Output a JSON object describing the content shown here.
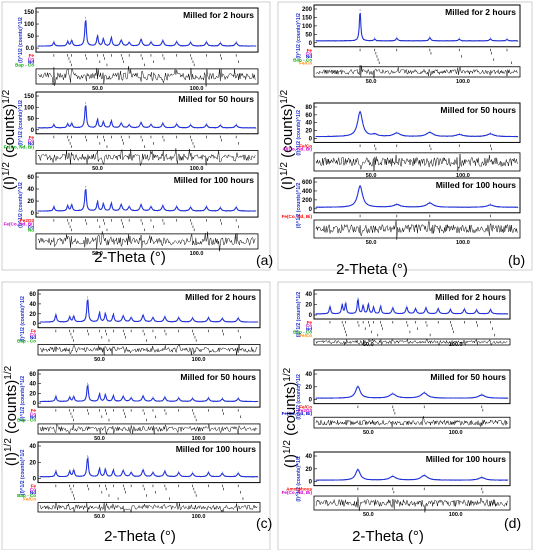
{
  "colors": {
    "calc": "#2233dd",
    "obs": "#000000",
    "residual": "#000000",
    "phase_palette": [
      "#ff0000",
      "#cc00cc",
      "#0000cc",
      "#00aa00",
      "#ff8800"
    ]
  },
  "figure": {
    "ylabel": "(I)^1/2 (counts)^1/2",
    "ylabel_base": "(I)",
    "ylabel_exp1": "1/2",
    "ylabel_mid": " (counts)",
    "ylabel_exp2": "1/2",
    "xlabel": "2-Theta (°)"
  },
  "chart_data": [
    {
      "panel": "(a)",
      "type": "line",
      "xlabel": "2-Theta (°)",
      "ylabel": "(I)^1/2 (counts)^1/2",
      "subplots": [
        {
          "title": "Milled for 2 hours",
          "yticks": [
            "0.0",
            "50",
            "100",
            "150"
          ],
          "xticks": [
            "50.0",
            "100.0"
          ],
          "xlim": [
            20,
            130
          ],
          "ylim": [
            0,
            180
          ],
          "phases": [
            "Fe",
            "Co",
            "Nd",
            "Bap - Co"
          ],
          "peaks": [
            [
              28,
              20
            ],
            [
              35,
              24
            ],
            [
              37,
              30
            ],
            [
              44,
              150
            ],
            [
              50,
              55
            ],
            [
              53,
              38
            ],
            [
              57,
              45
            ],
            [
              62,
              30
            ],
            [
              66,
              18
            ],
            [
              72,
              35
            ],
            [
              77,
              20
            ],
            [
              83,
              28
            ],
            [
              90,
              22
            ],
            [
              97,
              18
            ],
            [
              105,
              20
            ],
            [
              112,
              15
            ],
            [
              120,
              18
            ]
          ]
        },
        {
          "title": "Milled for 50 hours",
          "yticks": [
            "0",
            "50",
            "100",
            "150"
          ],
          "xticks": [
            "50.0",
            "100.0"
          ],
          "xlim": [
            20,
            130
          ],
          "ylim": [
            0,
            180
          ],
          "phases": [
            "Fe",
            "Co",
            "Nd",
            "Fe(Co, Nd, Bi)"
          ],
          "peaks": [
            [
              28,
              18
            ],
            [
              35,
              22
            ],
            [
              37,
              26
            ],
            [
              44,
              140
            ],
            [
              50,
              48
            ],
            [
              53,
              34
            ],
            [
              57,
              40
            ],
            [
              62,
              26
            ],
            [
              66,
              16
            ],
            [
              72,
              30
            ],
            [
              77,
              18
            ],
            [
              83,
              25
            ],
            [
              90,
              20
            ],
            [
              97,
              16
            ],
            [
              105,
              18
            ],
            [
              112,
              14
            ],
            [
              120,
              16
            ]
          ]
        },
        {
          "title": "Milled for 100 hours",
          "yticks": [
            "0",
            "20",
            "40",
            "60"
          ],
          "xticks": [
            "50.0",
            "100.0"
          ],
          "xlim": [
            20,
            130
          ],
          "ylim": [
            0,
            65
          ],
          "phases": [
            "Fe2O3",
            "Fe(Co, Nd, Bi)",
            "Co",
            "Nd"
          ],
          "peaks": [
            [
              28,
              8
            ],
            [
              35,
              10
            ],
            [
              37,
              12
            ],
            [
              44,
              46
            ],
            [
              50,
              18
            ],
            [
              53,
              14
            ],
            [
              57,
              15
            ],
            [
              62,
              12
            ],
            [
              66,
              8
            ],
            [
              72,
              12
            ],
            [
              77,
              8
            ],
            [
              83,
              10
            ],
            [
              90,
              8
            ],
            [
              97,
              7
            ],
            [
              105,
              8
            ],
            [
              112,
              6
            ],
            [
              120,
              7
            ]
          ]
        }
      ]
    },
    {
      "panel": "(b)",
      "type": "line",
      "xlabel": "2-Theta (°)",
      "ylabel": "(I)^1/2 (counts)^1/2",
      "subplots": [
        {
          "title": "Milled for 2 hours",
          "yticks": [
            "0",
            "50",
            "100",
            "150",
            "200"
          ],
          "xticks": [
            "50.0",
            "100.0"
          ],
          "xlim": [
            20,
            130
          ],
          "ylim": [
            0,
            205
          ],
          "phases": [
            "Fe",
            "Co",
            "Nd",
            "Bap - Co",
            "Fe/Co"
          ],
          "peaks": [
            [
              44,
              200
            ],
            [
              52,
              12
            ],
            [
              64,
              16
            ],
            [
              82,
              20
            ],
            [
              98,
              10
            ],
            [
              115,
              12
            ],
            [
              124,
              8
            ]
          ]
        },
        {
          "title": "Milled for 50 hours",
          "yticks": [
            "0",
            "20",
            "40",
            "60",
            "80"
          ],
          "xticks": [
            "50.0",
            "100.0"
          ],
          "xlim": [
            20,
            130
          ],
          "ylim": [
            0,
            85
          ],
          "phases": [
            "Fe/Co",
            "Al(Co, Nd, Bi)"
          ],
          "peaks": [
            [
              44,
              72
            ],
            [
              52,
              6
            ],
            [
              64,
              10
            ],
            [
              82,
              12
            ],
            [
              98,
              6
            ],
            [
              115,
              8
            ]
          ]
        },
        {
          "title": "Milled for 100 hours",
          "yticks": [
            "0",
            "200",
            "400",
            "600"
          ],
          "xticks": [
            "50.0",
            "100.0"
          ],
          "xlim": [
            20,
            130
          ],
          "ylim": [
            0,
            650
          ],
          "phases": [
            "Fe(Co, Nd, Bi)"
          ],
          "peaks": [
            [
              44,
              560
            ],
            [
              64,
              70
            ],
            [
              82,
              110
            ],
            [
              115,
              60
            ]
          ]
        }
      ]
    },
    {
      "panel": "(c)",
      "type": "line",
      "xlabel": "2-Theta (°)",
      "ylabel": "(I)^1/2 (counts)^1/2",
      "subplots": [
        {
          "title": "Milled for 2 hours",
          "yticks": [
            "0",
            "20",
            "40",
            "60"
          ],
          "xticks": [
            "50.0",
            "100.0"
          ],
          "xlim": [
            20,
            130
          ],
          "ylim": [
            0,
            65
          ],
          "phases": [
            "Fe",
            "Co",
            "Nd",
            "Bap - Co"
          ],
          "peaks": [
            [
              28,
              18
            ],
            [
              35,
              12
            ],
            [
              37,
              14
            ],
            [
              44,
              58
            ],
            [
              50,
              22
            ],
            [
              53,
              20
            ],
            [
              57,
              18
            ],
            [
              62,
              14
            ],
            [
              66,
              10
            ],
            [
              72,
              16
            ],
            [
              77,
              10
            ],
            [
              83,
              12
            ],
            [
              90,
              10
            ],
            [
              97,
              9
            ],
            [
              105,
              10
            ],
            [
              112,
              8
            ],
            [
              120,
              9
            ]
          ]
        },
        {
          "title": "Milled for 50 hours",
          "yticks": [
            "0",
            "20",
            "40",
            "60"
          ],
          "xticks": [
            "50.0",
            "100.0"
          ],
          "xlim": [
            20,
            130
          ],
          "ylim": [
            0,
            65
          ],
          "phases": [
            "Fe",
            "Co",
            "Nd",
            "Bap - Co"
          ],
          "peaks": [
            [
              28,
              12
            ],
            [
              35,
              10
            ],
            [
              37,
              12
            ],
            [
              44,
              42
            ],
            [
              50,
              18
            ],
            [
              53,
              16
            ],
            [
              57,
              14
            ],
            [
              62,
              12
            ],
            [
              66,
              8
            ],
            [
              72,
              13
            ],
            [
              77,
              8
            ],
            [
              83,
              10
            ],
            [
              90,
              8
            ],
            [
              97,
              7
            ],
            [
              105,
              8
            ],
            [
              112,
              6
            ],
            [
              120,
              7
            ]
          ]
        },
        {
          "title": "Milled for 100 hours",
          "yticks": [
            "0",
            "20",
            "40"
          ],
          "xticks": [
            "50.0",
            "100.0"
          ],
          "xlim": [
            20,
            130
          ],
          "ylim": [
            0,
            45
          ],
          "phases": [
            "Fe",
            "Co",
            "Nd",
            "Bap - Co",
            "Fe/Co"
          ],
          "peaks": [
            [
              28,
              8
            ],
            [
              35,
              8
            ],
            [
              37,
              10
            ],
            [
              44,
              30
            ],
            [
              50,
              12
            ],
            [
              53,
              11
            ],
            [
              57,
              10
            ],
            [
              62,
              9
            ],
            [
              66,
              6
            ],
            [
              72,
              10
            ],
            [
              77,
              6
            ],
            [
              83,
              8
            ],
            [
              90,
              6
            ],
            [
              97,
              5
            ],
            [
              105,
              6
            ],
            [
              112,
              5
            ],
            [
              120,
              5
            ]
          ]
        }
      ]
    },
    {
      "panel": "(d)",
      "type": "line",
      "xlabel": "2-Theta (°)",
      "ylabel": "(I)^1/2 (counts)^1/2",
      "subplots": [
        {
          "title": "Milled for 2 hours",
          "yticks": [
            "0",
            "20",
            "40"
          ],
          "xticks": [
            "50.0",
            "100.0"
          ],
          "xlim": [
            20,
            130
          ],
          "ylim": [
            0,
            45
          ],
          "phases": [
            "Fe",
            "Co",
            "Nd",
            "Bap - Co",
            "Fe/Co"
          ],
          "peaks": [
            [
              28,
              18
            ],
            [
              35,
              22
            ],
            [
              37,
              26
            ],
            [
              44,
              36
            ],
            [
              47,
              20
            ],
            [
              50,
              24
            ],
            [
              53,
              16
            ],
            [
              57,
              18
            ],
            [
              64,
              14
            ],
            [
              72,
              16
            ],
            [
              77,
              12
            ],
            [
              83,
              14
            ],
            [
              90,
              12
            ],
            [
              97,
              10
            ],
            [
              105,
              11
            ],
            [
              112,
              9
            ],
            [
              120,
              10
            ]
          ]
        },
        {
          "title": "Milled for 50 hours",
          "yticks": [
            "0",
            "20",
            "40"
          ],
          "xticks": [
            "50.0",
            "100.0"
          ],
          "xlim": [
            20,
            130
          ],
          "ylim": [
            0,
            45
          ],
          "phases": [
            "Fe/Co",
            "Fe2O3",
            "Fe(Co, Nd, Bi)"
          ],
          "peaks": [
            [
              44,
              22
            ],
            [
              64,
              8
            ],
            [
              82,
              10
            ],
            [
              115,
              6
            ]
          ]
        },
        {
          "title": "Milled for 100 hours",
          "yticks": [
            "0",
            "20",
            "40"
          ],
          "xticks": [
            "50.0",
            "100.0"
          ],
          "xlim": [
            20,
            130
          ],
          "ylim": [
            0,
            45
          ],
          "phases": [
            "Amorphous",
            "Fe(Co, Nd, Bi)"
          ],
          "peaks": [
            [
              44,
              20
            ],
            [
              64,
              7
            ],
            [
              82,
              9
            ],
            [
              115,
              5
            ]
          ]
        }
      ]
    }
  ]
}
